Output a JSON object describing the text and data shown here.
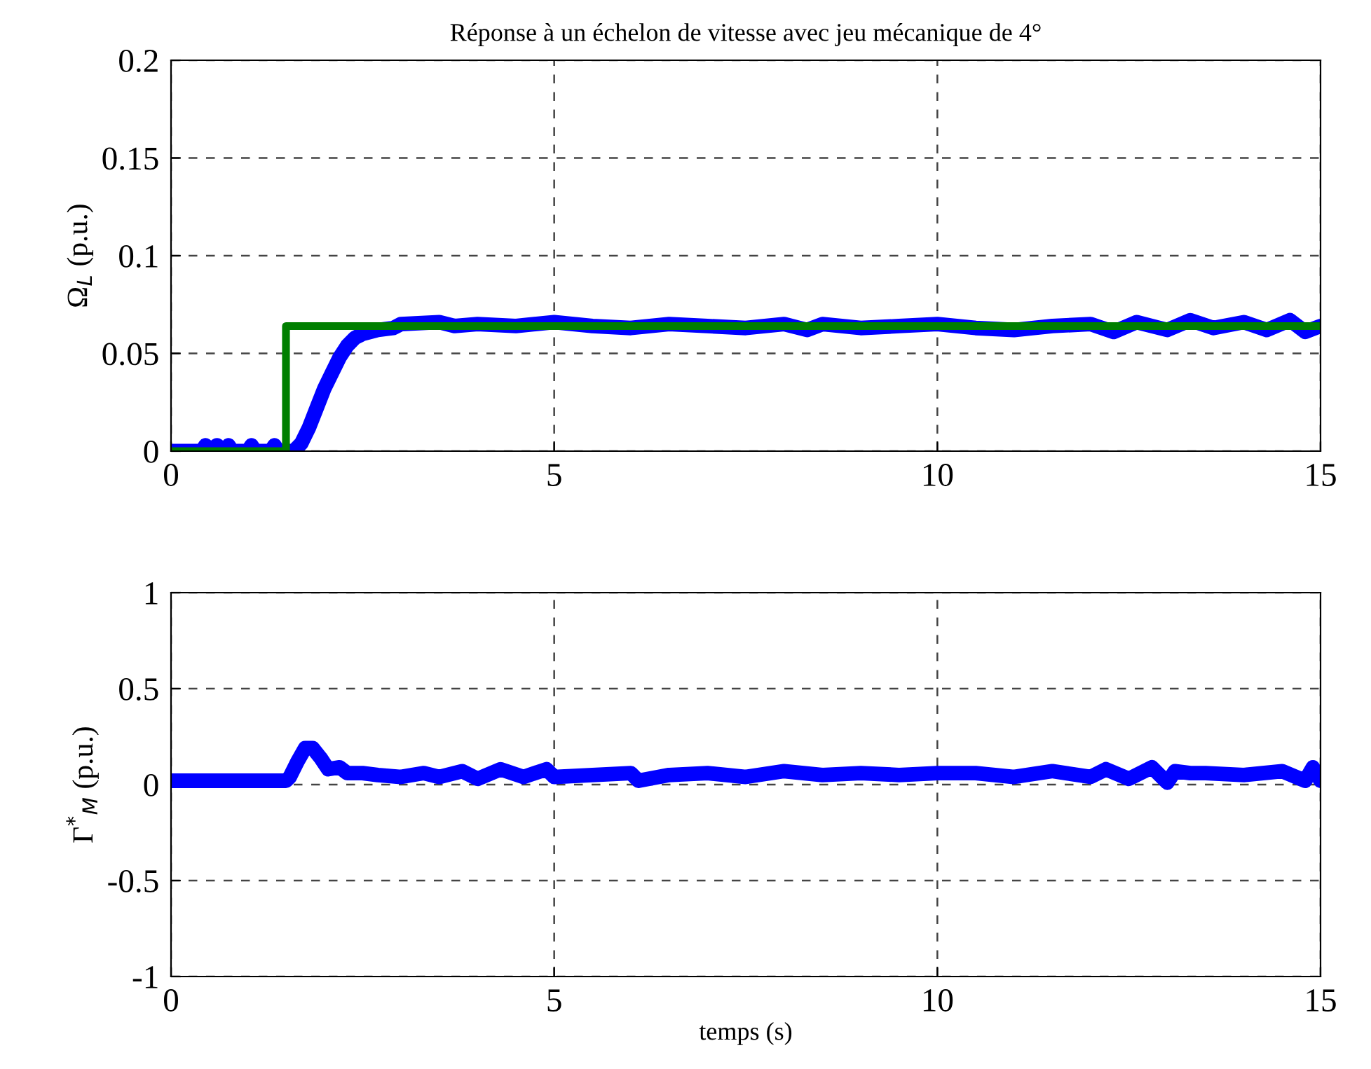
{
  "chart_data": [
    {
      "type": "line",
      "title": "Réponse à un échelon de vitesse avec jeu mécanique de 4°",
      "ylabel": "Ω$_{L}$ (p.u.)",
      "xlim": [
        0,
        15
      ],
      "xticks": [
        0,
        5,
        10,
        15
      ],
      "ylim": [
        0,
        0.2
      ],
      "yticks": [
        0,
        0.05,
        0.1,
        0.15,
        0.2
      ],
      "grid": true,
      "series": [
        {
          "color": "#0000ff",
          "x": [
            0,
            0.4,
            0.45,
            0.5,
            0.6,
            0.7,
            0.75,
            0.8,
            1.0,
            1.05,
            1.1,
            1.3,
            1.35,
            1.4,
            1.6,
            1.7,
            1.8,
            1.9,
            2.0,
            2.1,
            2.2,
            2.3,
            2.4,
            2.5,
            2.7,
            2.9,
            3.0,
            3.5,
            3.7,
            4.0,
            4.5,
            5.0,
            5.5,
            6.0,
            6.5,
            7.0,
            7.5,
            8.0,
            8.3,
            8.5,
            9.0,
            9.5,
            10.0,
            10.5,
            11.0,
            11.5,
            12.0,
            12.3,
            12.6,
            13.0,
            13.3,
            13.6,
            14.0,
            14.3,
            14.6,
            14.8,
            15.0
          ],
          "values": [
            0,
            0,
            0.003,
            0,
            0.003,
            0,
            0.003,
            0,
            0,
            0.003,
            0,
            0,
            0.003,
            0,
            0,
            0.004,
            0.012,
            0.022,
            0.032,
            0.04,
            0.048,
            0.054,
            0.058,
            0.06,
            0.062,
            0.063,
            0.065,
            0.066,
            0.064,
            0.065,
            0.064,
            0.066,
            0.064,
            0.063,
            0.065,
            0.064,
            0.063,
            0.065,
            0.062,
            0.065,
            0.063,
            0.064,
            0.065,
            0.063,
            0.062,
            0.064,
            0.065,
            0.061,
            0.066,
            0.062,
            0.067,
            0.063,
            0.066,
            0.062,
            0.067,
            0.061,
            0.064
          ]
        },
        {
          "color": "#007f00",
          "x": [
            0,
            1.5,
            1.5,
            15
          ],
          "values": [
            0,
            0,
            0.064,
            0.064
          ]
        }
      ]
    },
    {
      "type": "line",
      "xlabel": "temps (s)",
      "ylabel": "Γ$^{*}$$_{M}$ (p.u.)",
      "xlim": [
        0,
        15
      ],
      "xticks": [
        0,
        5,
        10,
        15
      ],
      "ylim": [
        -1,
        1
      ],
      "yticks": [
        -1,
        -0.5,
        0,
        0.5,
        1
      ],
      "grid": true,
      "series": [
        {
          "color": "#0000ff",
          "x": [
            0,
            1.5,
            1.55,
            1.65,
            1.75,
            1.85,
            1.95,
            2.05,
            2.2,
            2.3,
            2.5,
            2.7,
            3.0,
            3.3,
            3.5,
            3.8,
            4.0,
            4.3,
            4.6,
            4.9,
            5.0,
            5.5,
            6.0,
            6.1,
            6.5,
            7.0,
            7.5,
            8.0,
            8.5,
            9.0,
            9.5,
            10.0,
            10.5,
            11.0,
            11.5,
            12.0,
            12.2,
            12.5,
            12.8,
            13.0,
            13.1,
            13.3,
            13.5,
            14.0,
            14.5,
            14.8,
            14.9,
            15.0
          ],
          "values": [
            0.02,
            0.02,
            0.04,
            0.12,
            0.19,
            0.19,
            0.14,
            0.08,
            0.09,
            0.06,
            0.06,
            0.05,
            0.04,
            0.06,
            0.04,
            0.07,
            0.03,
            0.08,
            0.04,
            0.08,
            0.04,
            0.05,
            0.06,
            0.02,
            0.05,
            0.06,
            0.04,
            0.07,
            0.05,
            0.06,
            0.05,
            0.06,
            0.06,
            0.04,
            0.07,
            0.04,
            0.08,
            0.03,
            0.09,
            0.01,
            0.07,
            0.06,
            0.06,
            0.05,
            0.07,
            0.02,
            0.09,
            0.02
          ]
        }
      ]
    }
  ]
}
